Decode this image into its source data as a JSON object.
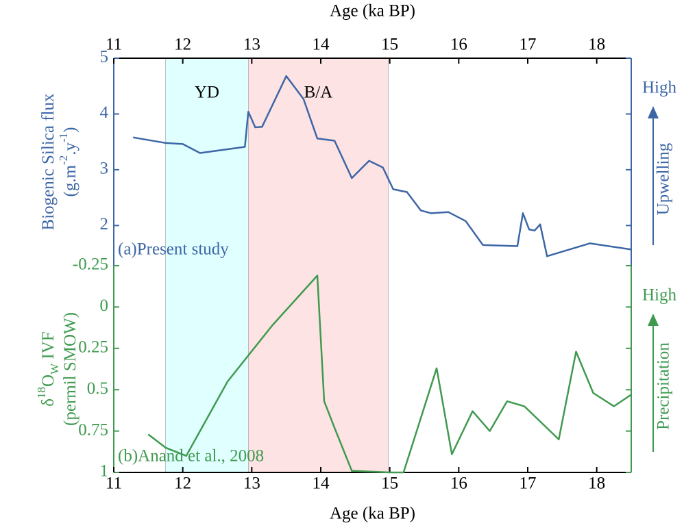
{
  "chart_data": [
    {
      "type": "line",
      "xlabel": "Age (ka BP)",
      "ylabel": [
        [
          {
            "text": "Biogenic Silica flux"
          }
        ],
        [
          {
            "text": "(g.m"
          },
          {
            "text": "-2",
            "shift": "super"
          },
          {
            "text": ".y"
          },
          {
            "text": "-1",
            "shift": "super"
          },
          {
            "text": ")"
          }
        ]
      ],
      "annotation": "(a)Present study",
      "right_labels": [
        "High",
        "Upwelling"
      ],
      "regions": [
        {
          "label": "YD",
          "xlim": [
            11.75,
            12.95
          ],
          "color": "#e0ffff"
        },
        {
          "label": "B/A",
          "xlim": [
            12.95,
            14.98
          ],
          "color": "#fde3e3"
        }
      ],
      "color": "#3d66a6",
      "xlim": [
        11,
        18.5
      ],
      "xticks": [
        11,
        12,
        13,
        14,
        15,
        16,
        17,
        18
      ],
      "ylim": [
        1.28,
        5
      ],
      "yticks": [
        2,
        3,
        4,
        5
      ],
      "x": [
        11.28,
        11.75,
        12.0,
        12.25,
        12.6,
        12.9,
        12.95,
        13.05,
        13.15,
        13.5,
        13.75,
        13.95,
        14.2,
        14.45,
        14.7,
        14.9,
        15.05,
        15.25,
        15.45,
        15.6,
        15.85,
        16.1,
        16.35,
        16.85,
        16.93,
        17.02,
        17.1,
        17.18,
        17.28,
        17.9,
        18.5
      ],
      "values": [
        3.58,
        3.48,
        3.46,
        3.3,
        3.36,
        3.41,
        4.04,
        3.76,
        3.77,
        4.68,
        4.27,
        3.56,
        3.52,
        2.85,
        3.16,
        3.04,
        2.65,
        2.6,
        2.27,
        2.22,
        2.24,
        2.08,
        1.65,
        1.63,
        2.22,
        1.93,
        1.91,
        2.02,
        1.45,
        1.68,
        1.57
      ]
    },
    {
      "type": "line",
      "xlabel": "Age (ka BP)",
      "ylabel": [
        [
          {
            "text": "δ"
          },
          {
            "text": "18",
            "shift": "super"
          },
          {
            "text": "O"
          },
          {
            "text": "W",
            "shift": "sub"
          },
          {
            "text": " IVF"
          }
        ],
        [
          {
            "text": "(permil SMOW)"
          }
        ]
      ],
      "annotation": "(b)Anand et al., 2008",
      "right_labels": [
        "High",
        "Precipitation"
      ],
      "color": "#3f9a4f",
      "xlim": [
        11,
        18.5
      ],
      "xticks": [
        11,
        12,
        13,
        14,
        15,
        16,
        17,
        18
      ],
      "ylim": [
        -0.25,
        1
      ],
      "yinvert": true,
      "yticks": [
        -0.25,
        0,
        0.25,
        0.5,
        0.75,
        1
      ],
      "x": [
        11.5,
        11.75,
        12.05,
        12.65,
        13.3,
        13.95,
        14.05,
        14.2,
        14.45,
        15.0,
        15.2,
        15.68,
        15.9,
        16.2,
        16.45,
        16.7,
        16.95,
        17.45,
        17.7,
        17.95,
        18.25,
        18.5
      ],
      "values": [
        0.77,
        0.85,
        0.9,
        0.45,
        0.11,
        -0.19,
        0.57,
        0.73,
        0.99,
        1.0,
        1.0,
        0.37,
        0.89,
        0.63,
        0.75,
        0.57,
        0.6,
        0.8,
        0.27,
        0.52,
        0.6,
        0.53
      ]
    }
  ]
}
